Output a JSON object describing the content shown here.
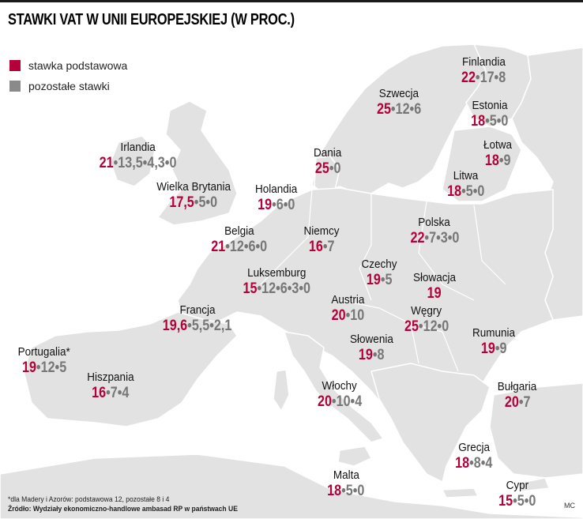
{
  "title": "STAWKI VAT W UNII EUROPEJSKIEJ (W PROC.)",
  "colors": {
    "main": "#b5003a",
    "other": "#8a8a8a",
    "land": "#e2e2e2",
    "border": "#ffffff"
  },
  "legend": [
    {
      "label": "stawka podstawowa",
      "color": "#b5003a"
    },
    {
      "label": "pozostałe stawki",
      "color": "#8a8a8a"
    }
  ],
  "countries": [
    {
      "name": "Finlandia",
      "main": "22",
      "other": "•17•8"
    },
    {
      "name": "Szwecja",
      "main": "25",
      "other": "•12•6"
    },
    {
      "name": "Estonia",
      "main": "18",
      "other": "•5•0"
    },
    {
      "name": "Irlandia",
      "main": "21",
      "other": "•13,5•4,3•0"
    },
    {
      "name": "Dania",
      "main": "25",
      "other": "•0"
    },
    {
      "name": "Łotwa",
      "main": "18",
      "other": "•9"
    },
    {
      "name": "Wielka Brytania",
      "main": "17,5",
      "other": "•5•0"
    },
    {
      "name": "Holandia",
      "main": "19",
      "other": "•6•0"
    },
    {
      "name": "Litwa",
      "main": "18",
      "other": "•5•0"
    },
    {
      "name": "Polska",
      "main": "22",
      "other": "•7•3•0"
    },
    {
      "name": "Belgia",
      "main": "21",
      "other": "•12•6•0"
    },
    {
      "name": "Niemcy",
      "main": "16",
      "other": "•7"
    },
    {
      "name": "Czechy",
      "main": "19",
      "other": "•5"
    },
    {
      "name": "Luksemburg",
      "main": "15",
      "other": "•12•6•3•0"
    },
    {
      "name": "Słowacja",
      "main": "19",
      "other": ""
    },
    {
      "name": "Austria",
      "main": "20",
      "other": "•10"
    },
    {
      "name": "Węgry",
      "main": "25",
      "other": "•12•0"
    },
    {
      "name": "Francja",
      "main": "19,6",
      "other": "•5,5•2,1"
    },
    {
      "name": "Rumunia",
      "main": "19",
      "other": "•9"
    },
    {
      "name": "Słowenia",
      "main": "19",
      "other": "•8"
    },
    {
      "name": "Portugalia*",
      "main": "19",
      "other": "•12•5"
    },
    {
      "name": "Hiszpania",
      "main": "16",
      "other": "•7•4"
    },
    {
      "name": "Włochy",
      "main": "20",
      "other": "•10•4"
    },
    {
      "name": "Bułgaria",
      "main": "20",
      "other": "•7"
    },
    {
      "name": "Grecja",
      "main": "18",
      "other": "•8•4"
    },
    {
      "name": "Malta",
      "main": "18",
      "other": "•5•0"
    },
    {
      "name": "Cypr",
      "main": "15",
      "other": "•5•0"
    }
  ],
  "footnote": "*dla Madery i Azorów: podstawowa 12, pozostałe 8 i 4",
  "source": "Źródło: Wydziały ekonomiczno-handlowe ambasad RP w państwach UE",
  "credit": "MC"
}
